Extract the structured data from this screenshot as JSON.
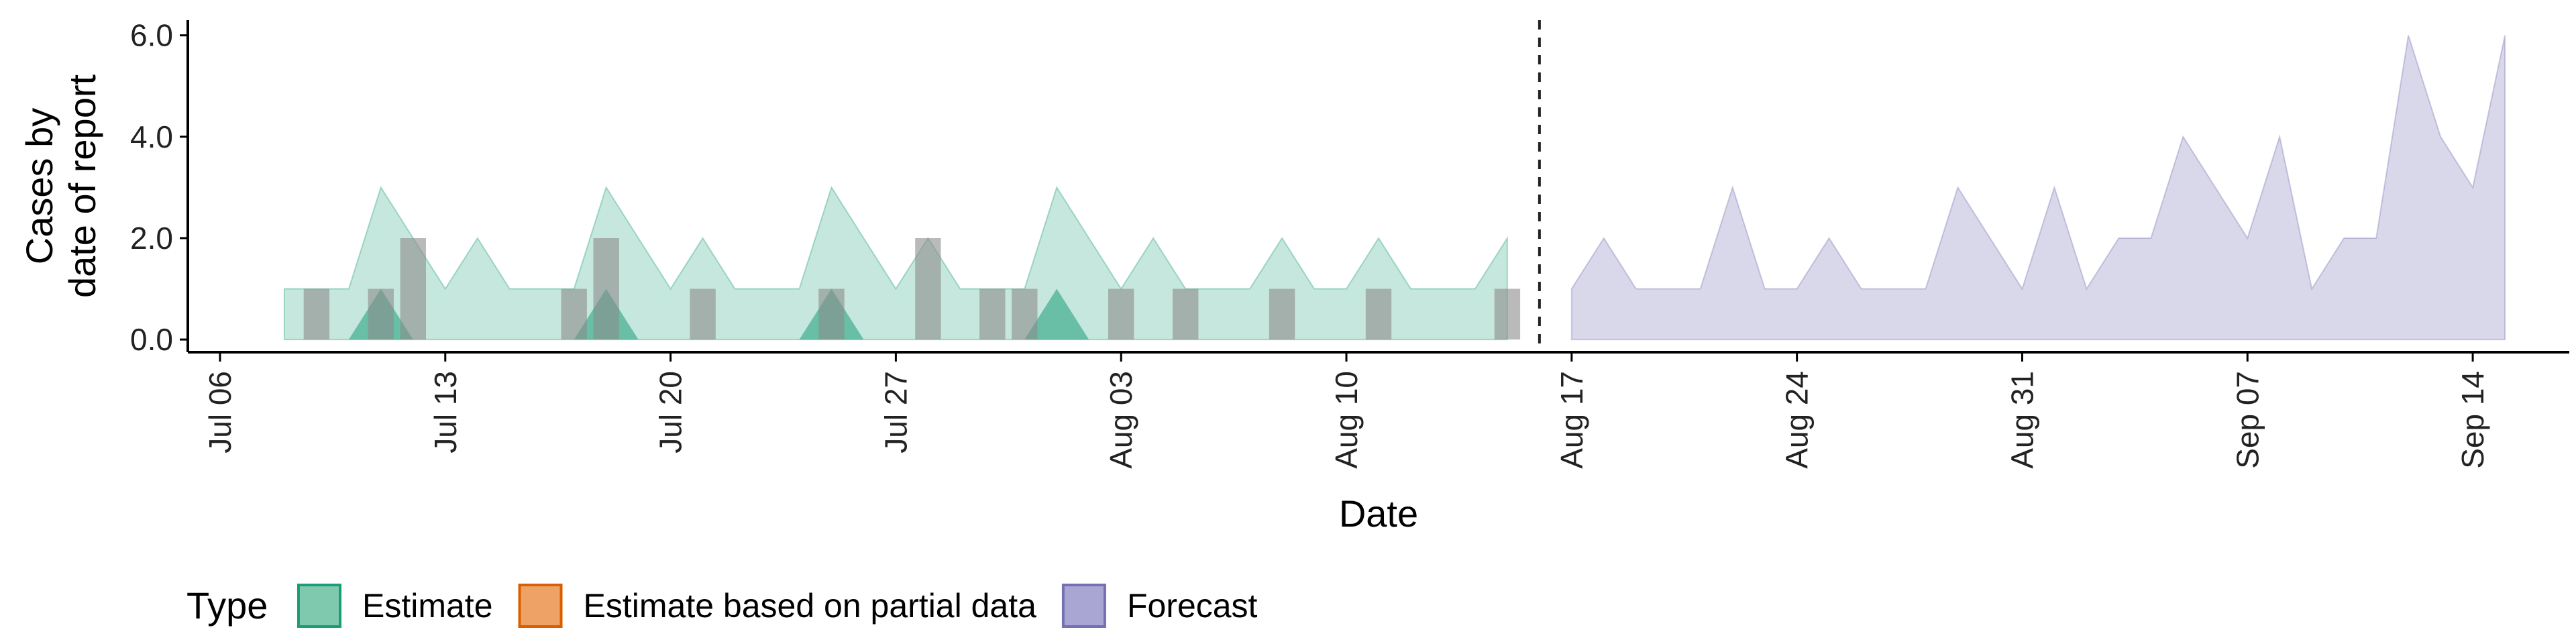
{
  "chart_data": {
    "type": "area",
    "xlabel": "Date",
    "ylabel_lines": [
      "Cases by",
      "date of report"
    ],
    "ylim": [
      -0.25,
      6.3
    ],
    "yticks": [
      0,
      2,
      4,
      6
    ],
    "ytick_labels": [
      "0.0",
      "2.0",
      "4.0",
      "6.0"
    ],
    "xlim": [
      "2020-07-05",
      "2020-09-17"
    ],
    "xticks": [
      "2020-07-06",
      "2020-07-13",
      "2020-07-20",
      "2020-07-27",
      "2020-08-03",
      "2020-08-10",
      "2020-08-17",
      "2020-08-24",
      "2020-08-31",
      "2020-09-07",
      "2020-09-14"
    ],
    "xtick_labels": [
      "Jul 06",
      "Jul 13",
      "Jul 20",
      "Jul 27",
      "Aug 03",
      "Aug 10",
      "Aug 17",
      "Aug 24",
      "Aug 31",
      "Sep 07",
      "Sep 14"
    ],
    "vline_date": "2020-08-16",
    "legend": {
      "title": "Type",
      "position": "bottom",
      "items": [
        {
          "label": "Estimate",
          "fill": "#7fc9ae",
          "stroke": "#1b9e77"
        },
        {
          "label": "Estimate based on partial data",
          "fill": "#eea266",
          "stroke": "#d95f02"
        },
        {
          "label": "Forecast",
          "fill": "#a9a6d3",
          "stroke": "#7570b3"
        }
      ]
    },
    "colors": {
      "estimate": "#1b9e77",
      "forecast": "#7570b3",
      "bars": "#8c8c8c",
      "axis": "#000000"
    },
    "estimate_band": {
      "dates": [
        "2020-07-08",
        "2020-07-09",
        "2020-07-10",
        "2020-07-11",
        "2020-07-12",
        "2020-07-13",
        "2020-07-14",
        "2020-07-15",
        "2020-07-16",
        "2020-07-17",
        "2020-07-18",
        "2020-07-19",
        "2020-07-20",
        "2020-07-21",
        "2020-07-22",
        "2020-07-23",
        "2020-07-24",
        "2020-07-25",
        "2020-07-26",
        "2020-07-27",
        "2020-07-28",
        "2020-07-29",
        "2020-07-30",
        "2020-07-31",
        "2020-08-01",
        "2020-08-02",
        "2020-08-03",
        "2020-08-04",
        "2020-08-05",
        "2020-08-06",
        "2020-08-07",
        "2020-08-08",
        "2020-08-09",
        "2020-08-10",
        "2020-08-11",
        "2020-08-12",
        "2020-08-13",
        "2020-08-14",
        "2020-08-15"
      ],
      "upper": [
        1,
        1,
        1,
        3,
        2,
        1,
        2,
        1,
        1,
        1,
        3,
        2,
        1,
        2,
        1,
        1,
        1,
        3,
        2,
        1,
        2,
        1,
        1,
        1,
        3,
        2,
        1,
        2,
        1,
        1,
        1,
        2,
        1,
        1,
        2,
        1,
        1,
        1,
        2
      ],
      "lower": [
        0,
        0,
        0,
        0,
        0,
        0,
        0,
        0,
        0,
        0,
        0,
        0,
        0,
        0,
        0,
        0,
        0,
        0,
        0,
        0,
        0,
        0,
        0,
        0,
        0,
        0,
        0,
        0,
        0,
        0,
        0,
        0,
        0,
        0,
        0,
        0,
        0,
        0,
        0
      ]
    },
    "estimate_peaks": [
      {
        "date": "2020-07-11",
        "height": 1
      },
      {
        "date": "2020-07-18",
        "height": 1
      },
      {
        "date": "2020-07-25",
        "height": 1
      },
      {
        "date": "2020-08-01",
        "height": 1
      }
    ],
    "reported_cases": {
      "dates": [
        "2020-07-09",
        "2020-07-11",
        "2020-07-12",
        "2020-07-17",
        "2020-07-18",
        "2020-07-21",
        "2020-07-25",
        "2020-07-28",
        "2020-07-30",
        "2020-07-31",
        "2020-08-03",
        "2020-08-05",
        "2020-08-08",
        "2020-08-11",
        "2020-08-15"
      ],
      "values": [
        1,
        1,
        2,
        1,
        2,
        1,
        1,
        2,
        1,
        1,
        1,
        1,
        1,
        1,
        1
      ]
    },
    "forecast_band": {
      "dates": [
        "2020-08-17",
        "2020-08-18",
        "2020-08-19",
        "2020-08-20",
        "2020-08-21",
        "2020-08-22",
        "2020-08-23",
        "2020-08-24",
        "2020-08-25",
        "2020-08-26",
        "2020-08-27",
        "2020-08-28",
        "2020-08-29",
        "2020-08-30",
        "2020-08-31",
        "2020-09-01",
        "2020-09-02",
        "2020-09-03",
        "2020-09-04",
        "2020-09-05",
        "2020-09-06",
        "2020-09-07",
        "2020-09-08",
        "2020-09-09",
        "2020-09-10",
        "2020-09-11",
        "2020-09-12",
        "2020-09-13",
        "2020-09-14",
        "2020-09-15"
      ],
      "upper": [
        1,
        2,
        1,
        1,
        1,
        3,
        1,
        1,
        2,
        1,
        1,
        1,
        3,
        2,
        1,
        3,
        1,
        2,
        2,
        4,
        3,
        2,
        4,
        1,
        2,
        2,
        6,
        4,
        3,
        6
      ],
      "lower": [
        0,
        0,
        0,
        0,
        0,
        0,
        0,
        0,
        0,
        0,
        0,
        0,
        0,
        0,
        0,
        0,
        0,
        0,
        0,
        0,
        0,
        0,
        0,
        0,
        0,
        0,
        0,
        0,
        0,
        0
      ]
    }
  }
}
